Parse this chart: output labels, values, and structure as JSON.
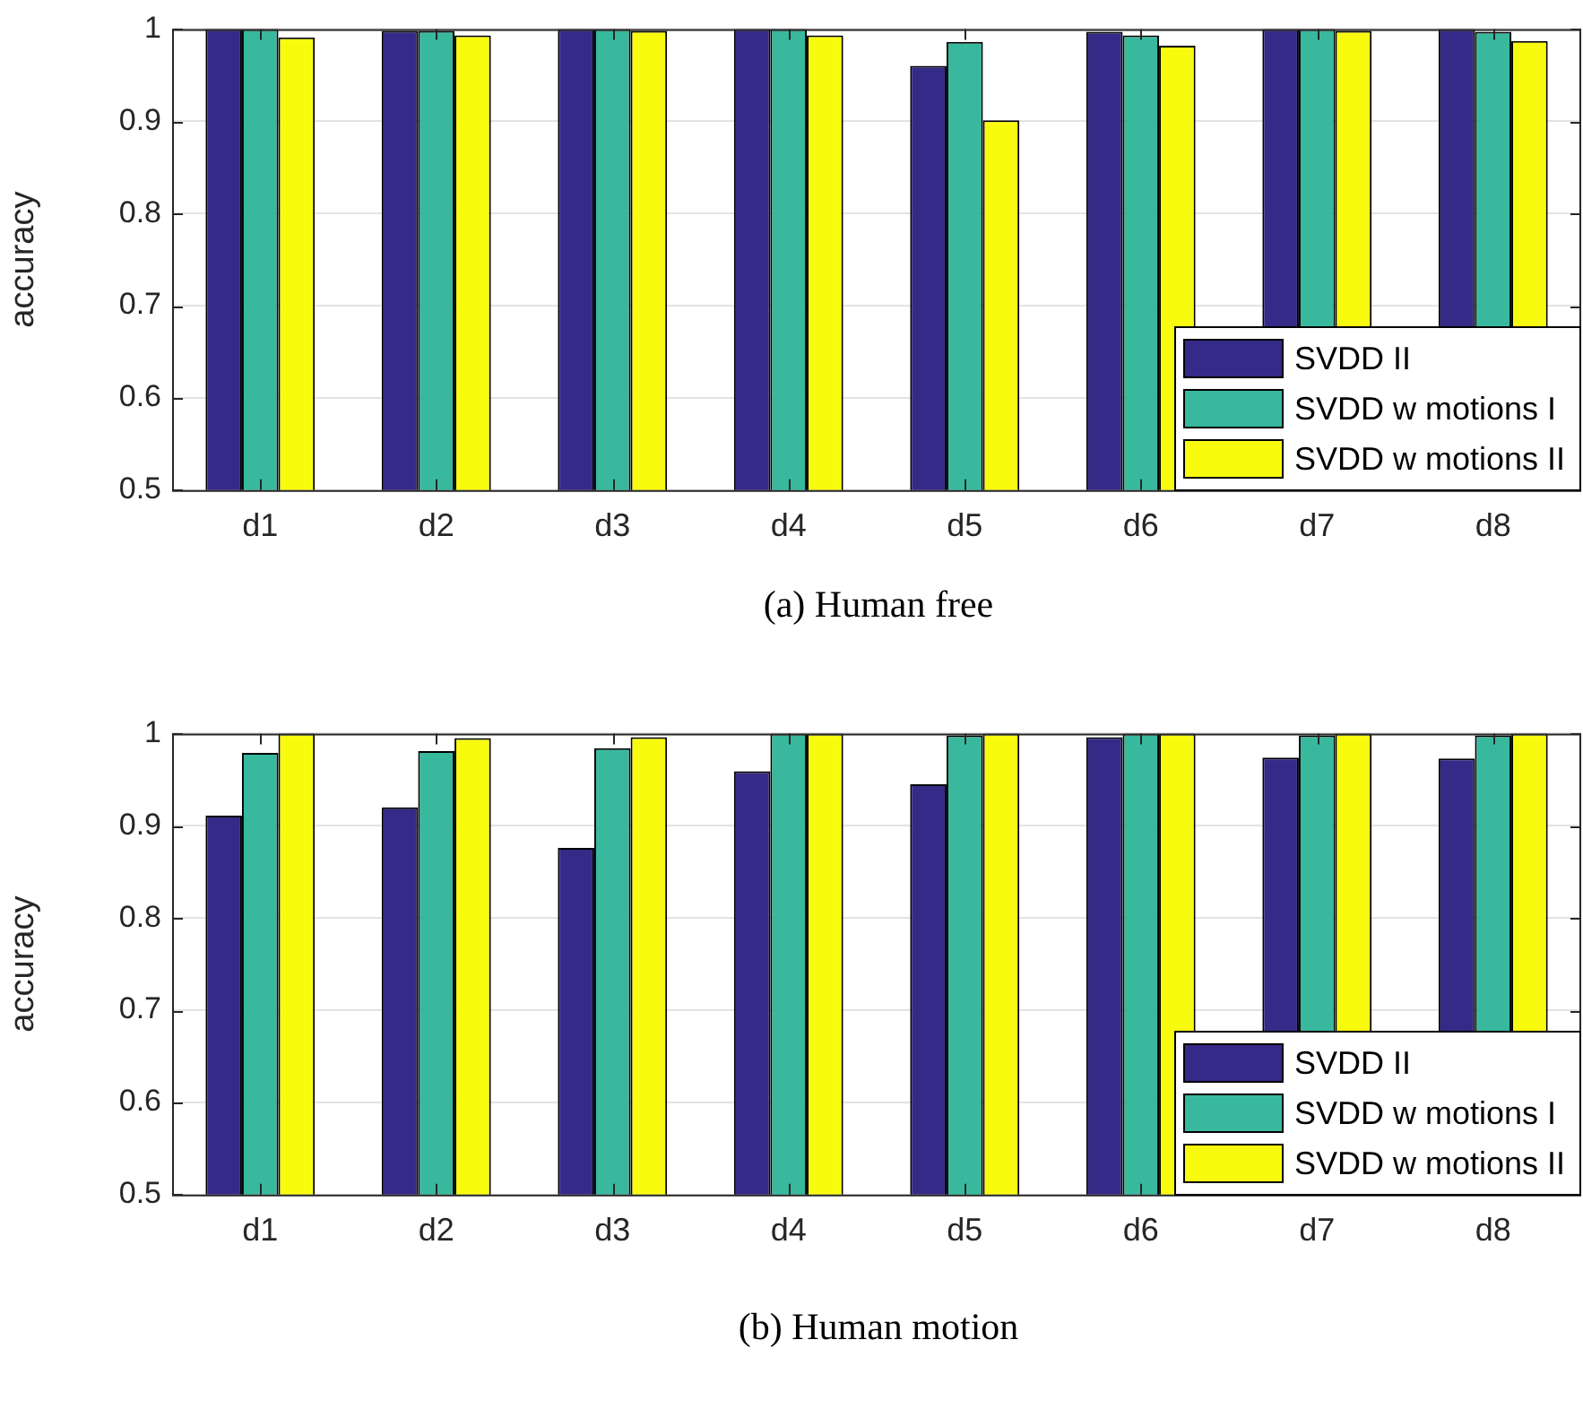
{
  "chart_data": [
    {
      "type": "bar",
      "categories": [
        "d1",
        "d2",
        "d3",
        "d4",
        "d5",
        "d6",
        "d7",
        "d8"
      ],
      "ylabel": "accuracy",
      "annotations": [
        "(a) Human free"
      ],
      "ylim": [
        0.5,
        1
      ],
      "yticks": [
        0.5,
        0.6,
        0.7,
        0.8,
        0.9,
        1
      ],
      "grid": "y",
      "legend": "bottom right",
      "series": [
        {
          "name": "SVDD II",
          "color": "#352a87",
          "values": [
            1,
            0.998,
            1,
            1,
            0.96,
            0.997,
            1,
            1
          ]
        },
        {
          "name": "SVDD w motions I",
          "color": "#38b99e",
          "values": [
            1,
            0.998,
            1,
            1,
            0.986,
            0.993,
            1,
            0.997
          ]
        },
        {
          "name": "SVDD w motions II",
          "color": "#f9fb0e",
          "values": [
            0.991,
            0.993,
            0.998,
            0.993,
            0.901,
            0.982,
            0.998,
            0.987
          ]
        }
      ]
    },
    {
      "type": "bar",
      "categories": [
        "d1",
        "d2",
        "d3",
        "d4",
        "d5",
        "d6",
        "d7",
        "d8"
      ],
      "ylabel": "accuracy",
      "annotations": [
        "(b) Human motion"
      ],
      "ylim": [
        0.5,
        1
      ],
      "yticks": [
        0.5,
        0.6,
        0.7,
        0.8,
        0.9,
        1
      ],
      "grid": "y",
      "legend": "bottom right",
      "series": [
        {
          "name": "SVDD II",
          "color": "#352a87",
          "values": [
            0.911,
            0.92,
            0.876,
            0.959,
            0.945,
            0.996,
            0.974,
            0.973
          ]
        },
        {
          "name": "SVDD w motions I",
          "color": "#38b99e",
          "values": [
            0.979,
            0.981,
            0.984,
            1,
            0.998,
            1,
            0.998,
            0.998
          ]
        },
        {
          "name": "SVDD w motions II",
          "color": "#f9fb0e",
          "values": [
            1,
            0.995,
            0.996,
            1,
            1,
            1,
            1,
            1
          ]
        }
      ]
    }
  ]
}
